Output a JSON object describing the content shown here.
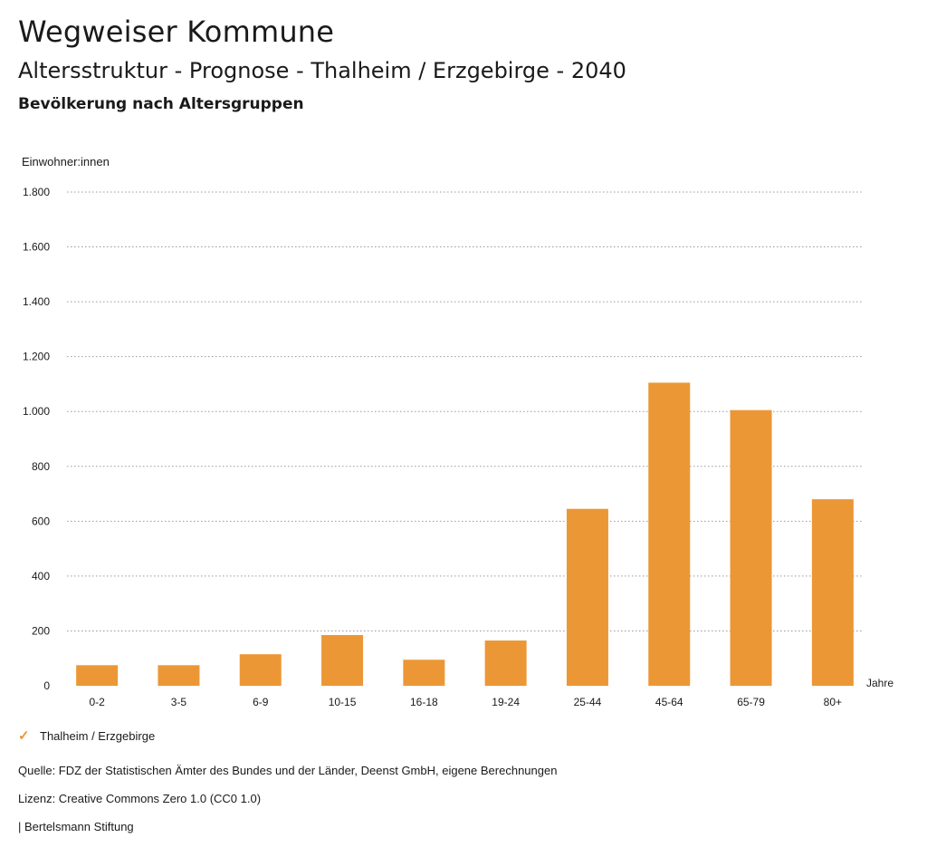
{
  "header": {
    "title": "Wegweiser Kommune",
    "subtitle": "Altersstruktur - Prognose - Thalheim / Erzgebirge - 2040",
    "subsubtitle": "Bevölkerung nach Altersgruppen"
  },
  "chart_data": {
    "type": "bar",
    "title": "Bevölkerung nach Altersgruppen",
    "ylabel": "Einwohner:innen",
    "xlabel": "Jahre",
    "categories": [
      "0-2",
      "3-5",
      "6-9",
      "10-15",
      "16-18",
      "19-24",
      "25-44",
      "45-64",
      "65-79",
      "80+"
    ],
    "series": [
      {
        "name": "Thalheim / Erzgebirge",
        "values": [
          75,
          75,
          115,
          185,
          95,
          165,
          645,
          1105,
          1005,
          680
        ]
      }
    ],
    "ylim": [
      0,
      1800
    ],
    "yticks": [
      0,
      200,
      400,
      600,
      800,
      1000,
      1200,
      1400,
      1600,
      1800
    ],
    "ytick_labels": [
      "0",
      "200",
      "400",
      "600",
      "800",
      "1.000",
      "1.200",
      "1.400",
      "1.600",
      "1.800"
    ],
    "grid": true,
    "legend": "bottom-left",
    "color": "#ec9735"
  },
  "legend": {
    "label": "Thalheim / Erzgebirge",
    "icon": "check-icon"
  },
  "footer": {
    "source": "Quelle: FDZ der Statistischen Ämter des Bundes und der Länder, Deenst GmbH, eigene Berechnungen",
    "license": "Lizenz: Creative Commons Zero 1.0 (CC0 1.0)",
    "org": "| Bertelsmann Stiftung"
  }
}
